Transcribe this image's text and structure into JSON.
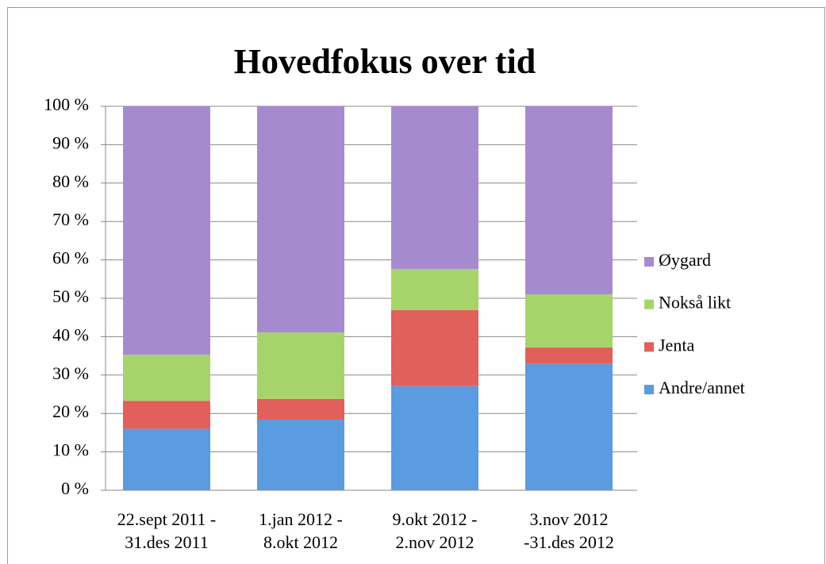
{
  "chart_data": {
    "type": "stacked_bar",
    "title": "Hovedfokus over tid",
    "categories": [
      "22.sept 2011 -\n31.des 2011",
      "1.jan 2012 -\n8.okt 2012",
      "9.okt 2012 -\n2.nov 2012",
      "3.nov 2012\n-31.des 2012"
    ],
    "series": [
      {
        "name": "Andre/annet",
        "color": "#5b9be0",
        "values": [
          16,
          18.4,
          27.1,
          32.9
        ]
      },
      {
        "name": "Jenta",
        "color": "#e2605b",
        "values": [
          7.3,
          5.4,
          19.8,
          4.3
        ]
      },
      {
        "name": "Nokså likt",
        "color": "#a7d46a",
        "values": [
          12,
          17.3,
          10.7,
          13.8
        ]
      },
      {
        "name": "Øygard",
        "color": "#a58ad0",
        "values": [
          64.7,
          58.9,
          42.4,
          49
        ]
      }
    ],
    "ylim": [
      0,
      100
    ],
    "yticks": [
      {
        "value": 0,
        "label": "0 %"
      },
      {
        "value": 10,
        "label": "10 %"
      },
      {
        "value": 20,
        "label": "20 %"
      },
      {
        "value": 30,
        "label": "30 %"
      },
      {
        "value": 40,
        "label": "40 %"
      },
      {
        "value": 50,
        "label": "50 %"
      },
      {
        "value": 60,
        "label": "60 %"
      },
      {
        "value": 70,
        "label": "70 %"
      },
      {
        "value": 80,
        "label": "80 %"
      },
      {
        "value": 90,
        "label": "90 %"
      },
      {
        "value": 100,
        "label": "100 %"
      }
    ],
    "grid": true,
    "legend": "right"
  }
}
